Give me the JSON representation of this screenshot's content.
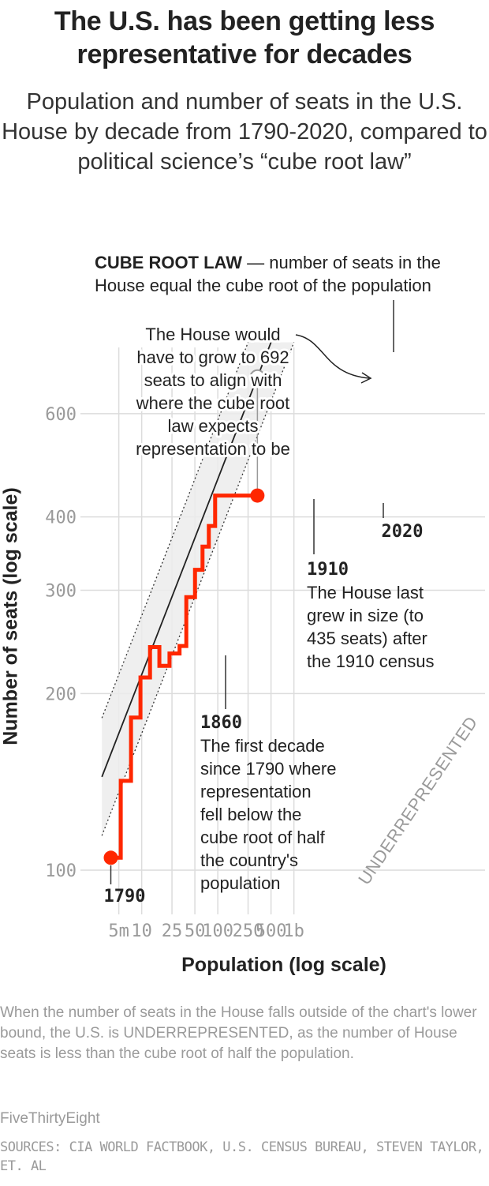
{
  "chart_data": {
    "type": "line",
    "title": "The U.S. has been getting less representative for decades",
    "subtitle": "Population and number of seats in the U.S. House by decade from 1790-2020, compared to political science’s “cube root law”",
    "xlabel": "Population (log scale)",
    "ylabel": "Number of seats (log scale)",
    "x_scale": "log",
    "y_scale": "log",
    "grid": true,
    "x_ticks": [
      {
        "value": 5000000,
        "label": "5m"
      },
      {
        "value": 10000000,
        "label": "10"
      },
      {
        "value": 25000000,
        "label": "25"
      },
      {
        "value": 50000000,
        "label": "50"
      },
      {
        "value": 100000000,
        "label": "100"
      },
      {
        "value": 250000000,
        "label": "250"
      },
      {
        "value": 500000000,
        "label": "500"
      },
      {
        "value": 1000000000,
        "label": "1b"
      }
    ],
    "y_ticks": [
      {
        "value": 100,
        "label": "100"
      },
      {
        "value": 200,
        "label": "200"
      },
      {
        "value": 300,
        "label": "300"
      },
      {
        "value": 400,
        "label": "400"
      },
      {
        "value": 600,
        "label": "600"
      }
    ],
    "xlim": [
      3000000,
      1100000000
    ],
    "ylim": [
      85,
      900
    ],
    "series": [
      {
        "name": "",
        "color": "#ff2700",
        "points": [
          [
            3929214,
            105
          ],
          [
            5308483,
            142
          ],
          [
            7239881,
            182
          ],
          [
            9638453,
            213
          ],
          [
            12866020,
            240
          ],
          [
            17069453,
            223
          ],
          [
            23191876,
            234
          ],
          [
            31443321,
            241
          ],
          [
            38558371,
            292
          ],
          [
            50189209,
            325
          ],
          [
            62979766,
            356
          ],
          [
            76212168,
            386
          ],
          [
            92228496,
            435
          ],
          [
            106021537,
            435
          ],
          [
            123202624,
            435
          ],
          [
            132164569,
            435
          ],
          [
            151325798,
            435
          ],
          [
            179323175,
            435
          ],
          [
            203302031,
            435
          ],
          [
            226542199,
            435
          ],
          [
            248709873,
            435
          ],
          [
            281421906,
            435
          ],
          [
            308745538,
            435
          ],
          [
            331449281,
            435
          ]
        ]
      },
      {
        "name": "CUBE ROOT LAW",
        "color": "#222222",
        "points": [
          [
            3000000,
            144.2
          ],
          [
            500000000,
            793.7
          ]
        ]
      }
    ],
    "band": {
      "lower": [
        [
          3000000,
          114.5
        ],
        [
          1000000000,
          793.7
        ]
      ],
      "upper": [
        [
          3000000,
          181.7
        ],
        [
          250000000,
          793.7
        ]
      ]
    },
    "highlights": [
      {
        "x": 331449281,
        "y": 692,
        "style": "hollow"
      },
      {
        "x": 3929214,
        "y": 105,
        "style": "filled"
      },
      {
        "x": 331449281,
        "y": 435,
        "style": "filled"
      }
    ],
    "annotations": {
      "cube_root_bold": "CUBE ROOT LAW",
      "cube_root_rest": " — number of seats in the",
      "cube_root_line2": "House equal the cube root of the population",
      "grow_lines": [
        "The House would",
        "have to grow to 692",
        "seats to align with",
        "where the cube root",
        "law expects",
        "representation to be"
      ],
      "year_1790": "1790",
      "year_2020": "2020",
      "year_1910": "1910",
      "text_1910": [
        "The House last",
        "grew in size (to",
        "435 seats) after",
        "the 1910 census"
      ],
      "year_1860": "1860",
      "text_1860": [
        "The first decade",
        "since 1790 where",
        "representation",
        "fell below the",
        "cube root of half",
        "the country's",
        "population"
      ],
      "underrepresented": "UNDERREPRESENTED"
    }
  },
  "note": "When the number of seats in the House falls outside of the chart's lower bound, the U.S. is UNDERREPRESENTED, as the number of House seats is less than the cube root of half the population.",
  "credit": "FiveThirtyEight",
  "sources": "SOURCES: CIA WORLD FACTBOOK, U.S. CENSUS BUREAU, STEVEN TAYLOR, ET. AL"
}
